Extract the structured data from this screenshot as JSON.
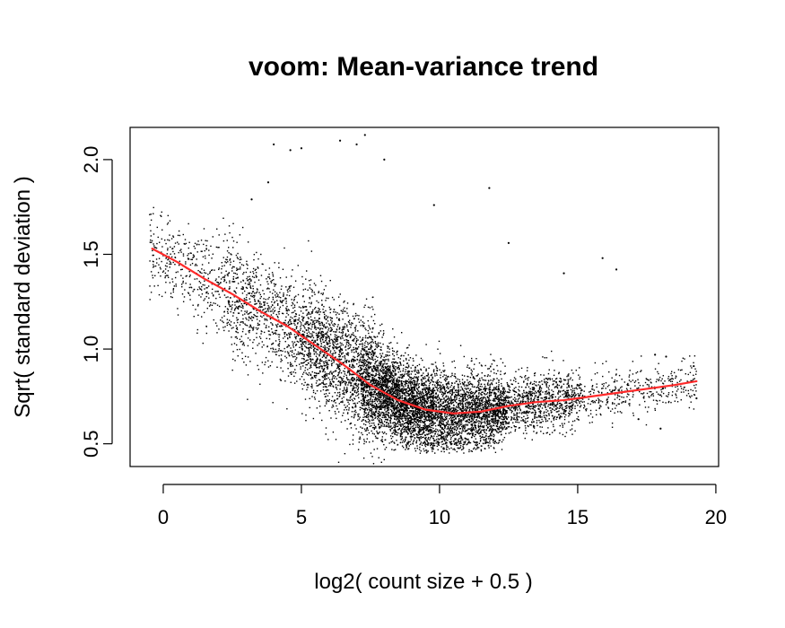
{
  "chart_data": {
    "type": "scatter",
    "title": "voom: Mean-variance trend",
    "xlabel": "log2( count size + 0.5 )",
    "ylabel": "Sqrt( standard deviation )",
    "xlim": [
      -1.2,
      20.1
    ],
    "ylim": [
      0.38,
      2.17
    ],
    "x_ticks": [
      0,
      5,
      10,
      15,
      20
    ],
    "y_ticks": [
      0.5,
      1.0,
      1.5,
      2.0
    ],
    "x_tick_labels": [
      "0",
      "5",
      "10",
      "15",
      "20"
    ],
    "y_tick_labels": [
      "0.5",
      "1.0",
      "1.5",
      "2.0"
    ],
    "grid": false,
    "legend": "none",
    "point_color": "#000000",
    "trend_color": "#ff2a2a",
    "trend_line": {
      "name": "",
      "x": [
        -0.4,
        0.5,
        1.5,
        2.5,
        3.5,
        4.5,
        5.5,
        6.5,
        7.5,
        8.5,
        9.5,
        10.5,
        11.5,
        12.5,
        13.5,
        14.5,
        15.5,
        16.5,
        17.5,
        18.5,
        19.3
      ],
      "y": [
        1.53,
        1.46,
        1.37,
        1.29,
        1.2,
        1.12,
        1.02,
        0.92,
        0.81,
        0.73,
        0.68,
        0.66,
        0.67,
        0.7,
        0.72,
        0.73,
        0.75,
        0.77,
        0.79,
        0.81,
        0.83
      ]
    },
    "scatter": {
      "n_points": 9000,
      "x_range": [
        -0.5,
        19.3
      ],
      "description_of_spread": "dense cloud following trend, widening toward low x, thinning at high x",
      "outliers": [
        {
          "x": 4.0,
          "y": 2.08
        },
        {
          "x": 4.6,
          "y": 2.05
        },
        {
          "x": 5.0,
          "y": 2.06
        },
        {
          "x": 6.4,
          "y": 2.1
        },
        {
          "x": 7.0,
          "y": 2.08
        },
        {
          "x": 7.3,
          "y": 2.13
        },
        {
          "x": 8.0,
          "y": 2.0
        },
        {
          "x": 11.8,
          "y": 1.85
        },
        {
          "x": 3.8,
          "y": 1.88
        },
        {
          "x": 3.2,
          "y": 1.79
        },
        {
          "x": 9.8,
          "y": 1.76
        },
        {
          "x": 12.5,
          "y": 1.56
        },
        {
          "x": 15.9,
          "y": 1.48
        },
        {
          "x": 14.5,
          "y": 1.4
        },
        {
          "x": 16.4,
          "y": 1.42
        },
        {
          "x": 17.8,
          "y": 0.97
        },
        {
          "x": 18.2,
          "y": 0.96
        },
        {
          "x": 19.2,
          "y": 0.91
        },
        {
          "x": 19.3,
          "y": 0.74
        },
        {
          "x": 17.2,
          "y": 0.63
        },
        {
          "x": 18.0,
          "y": 0.58
        }
      ]
    }
  }
}
